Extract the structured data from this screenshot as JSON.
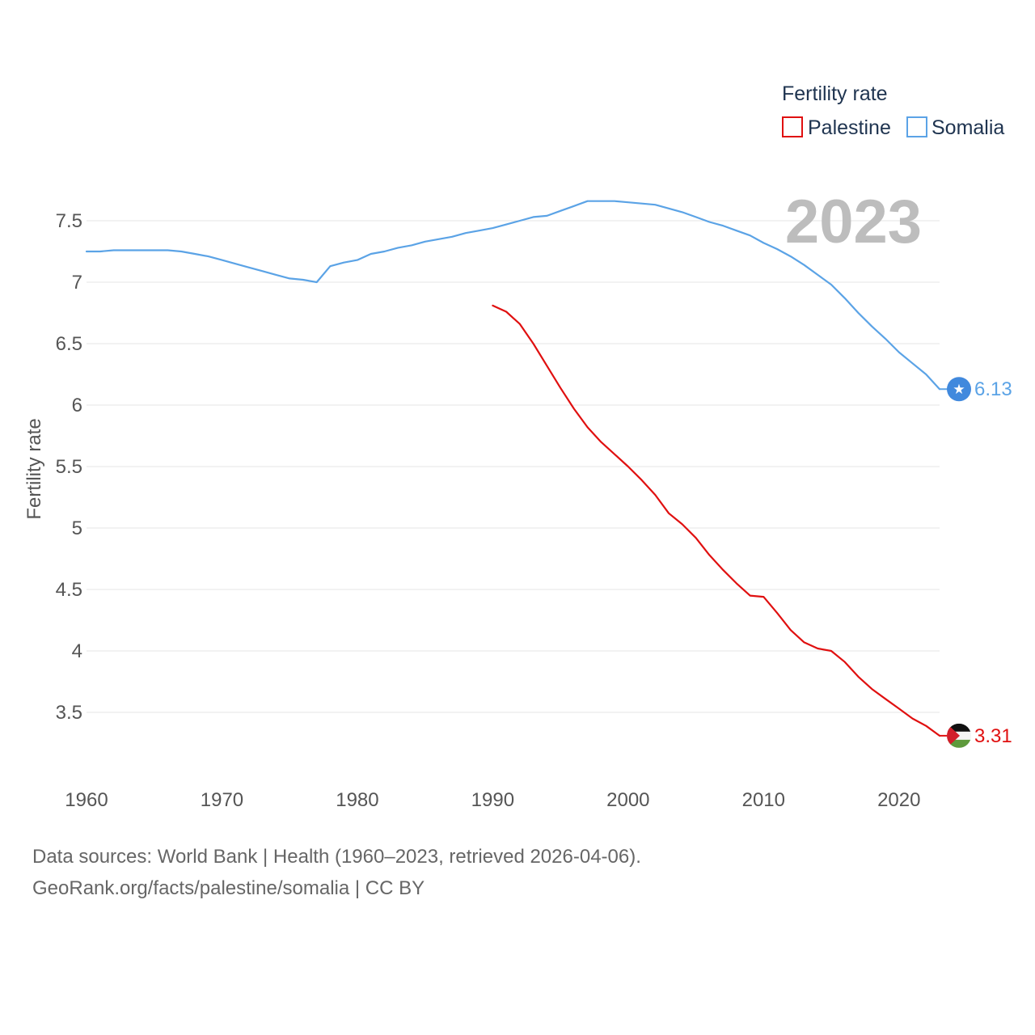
{
  "chart_data": {
    "type": "line",
    "title": "",
    "ylabel": "Fertility rate",
    "xlabel": "",
    "year_display": "2023",
    "legend_title": "Fertility rate",
    "xlim": [
      1960,
      2023
    ],
    "ylim": [
      2.9,
      7.95
    ],
    "x_ticks": [
      1960,
      1970,
      1980,
      1990,
      2000,
      2010,
      2020
    ],
    "y_ticks": [
      3.5,
      4,
      4.5,
      5,
      5.5,
      6,
      6.5,
      7,
      7.5
    ],
    "y_tick_labels": [
      "3.5",
      "4",
      "4.5",
      "5",
      "5.5",
      "6",
      "6.5",
      "7",
      "7.5"
    ],
    "series": [
      {
        "name": "Palestine",
        "color": "#e01010",
        "end_label": "3.31",
        "marker_icon": "palestine-flag-icon",
        "x": [
          1990,
          1991,
          1992,
          1993,
          1994,
          1995,
          1996,
          1997,
          1998,
          1999,
          2000,
          2001,
          2002,
          2003,
          2004,
          2005,
          2006,
          2007,
          2008,
          2009,
          2010,
          2011,
          2012,
          2013,
          2014,
          2015,
          2016,
          2017,
          2018,
          2019,
          2020,
          2021,
          2022,
          2023
        ],
        "values": [
          6.81,
          6.76,
          6.66,
          6.5,
          6.32,
          6.14,
          5.97,
          5.82,
          5.7,
          5.6,
          5.5,
          5.39,
          5.27,
          5.12,
          5.03,
          4.92,
          4.78,
          4.66,
          4.55,
          4.45,
          4.44,
          4.31,
          4.17,
          4.07,
          4.02,
          4.0,
          3.91,
          3.79,
          3.69,
          3.61,
          3.53,
          3.45,
          3.39,
          3.31
        ]
      },
      {
        "name": "Somalia",
        "color": "#5ba3e6",
        "end_label": "6.13",
        "marker_icon": "somalia-flag-icon",
        "x": [
          1960,
          1961,
          1962,
          1963,
          1964,
          1965,
          1966,
          1967,
          1968,
          1969,
          1970,
          1971,
          1972,
          1973,
          1974,
          1975,
          1976,
          1977,
          1978,
          1979,
          1980,
          1981,
          1982,
          1983,
          1984,
          1985,
          1986,
          1987,
          1988,
          1989,
          1990,
          1991,
          1992,
          1993,
          1994,
          1995,
          1996,
          1997,
          1998,
          1999,
          2000,
          2001,
          2002,
          2003,
          2004,
          2005,
          2006,
          2007,
          2008,
          2009,
          2010,
          2011,
          2012,
          2013,
          2014,
          2015,
          2016,
          2017,
          2018,
          2019,
          2020,
          2021,
          2022,
          2023
        ],
        "values": [
          7.25,
          7.25,
          7.26,
          7.26,
          7.26,
          7.26,
          7.26,
          7.25,
          7.23,
          7.21,
          7.18,
          7.15,
          7.12,
          7.09,
          7.06,
          7.03,
          7.02,
          7.0,
          7.13,
          7.16,
          7.18,
          7.23,
          7.25,
          7.28,
          7.3,
          7.33,
          7.35,
          7.37,
          7.4,
          7.42,
          7.44,
          7.47,
          7.5,
          7.53,
          7.54,
          7.58,
          7.62,
          7.66,
          7.66,
          7.66,
          7.65,
          7.64,
          7.63,
          7.6,
          7.57,
          7.53,
          7.49,
          7.46,
          7.42,
          7.38,
          7.32,
          7.27,
          7.21,
          7.14,
          7.06,
          6.98,
          6.87,
          6.75,
          6.64,
          6.54,
          6.43,
          6.34,
          6.25,
          6.13
        ]
      }
    ]
  },
  "footer": {
    "line1": "Data sources: World Bank | Health (1960–2023, retrieved 2026-04-06).",
    "line2": "GeoRank.org/facts/palestine/somalia | CC BY"
  }
}
